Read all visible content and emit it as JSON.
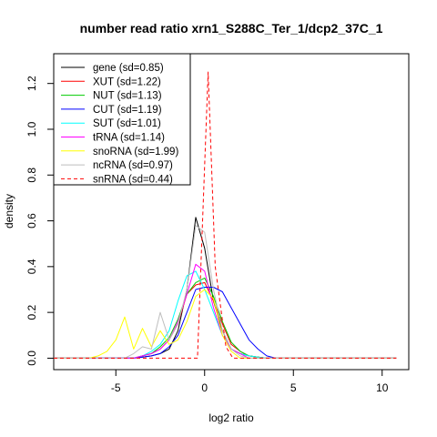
{
  "chart_data": {
    "type": "line",
    "title": "number read ratio xrn1_S288C_Ter_1/dcp2_37C_1",
    "xlabel": "log2 ratio",
    "ylabel": "density",
    "xlim": [
      -8.5,
      11.5
    ],
    "ylim": [
      -0.05,
      1.33
    ],
    "xticks": [
      -5,
      0,
      5,
      10
    ],
    "yticks": [
      0.0,
      0.2,
      0.4,
      0.6,
      0.8,
      1.0,
      1.2
    ],
    "ytick_labels": [
      "0.0",
      "0.2",
      "0.4",
      "0.6",
      "0.8",
      "1.0",
      "1.2"
    ],
    "grid": false,
    "legend_position": "top-left",
    "series": [
      {
        "name": "gene (sd=0.85)",
        "color": "#000000",
        "dash": "solid",
        "x": [
          -8.5,
          -4.0,
          -3.5,
          -3.0,
          -2.5,
          -2.0,
          -1.5,
          -1.0,
          -0.5,
          0.0,
          0.5,
          1.0,
          1.5,
          2.0,
          2.5,
          3.0,
          3.5,
          4.0,
          10.8
        ],
        "y": [
          0,
          0,
          0.005,
          0.01,
          0.02,
          0.04,
          0.12,
          0.3,
          0.615,
          0.48,
          0.25,
          0.12,
          0.04,
          0.02,
          0.01,
          0.005,
          0,
          0,
          0
        ]
      },
      {
        "name": "XUT (sd=1.22)",
        "color": "#ff0000",
        "dash": "solid",
        "x": [
          -8.5,
          -4.0,
          -3.5,
          -3.0,
          -2.5,
          -2.0,
          -1.5,
          -1.0,
          -0.5,
          0.0,
          0.5,
          1.0,
          1.5,
          2.0,
          2.5,
          3.0,
          3.5,
          4.0,
          10.8
        ],
        "y": [
          0,
          0,
          0.01,
          0.02,
          0.04,
          0.08,
          0.15,
          0.28,
          0.32,
          0.33,
          0.25,
          0.15,
          0.06,
          0.03,
          0.01,
          0.005,
          0,
          0,
          0
        ]
      },
      {
        "name": "NUT (sd=1.13)",
        "color": "#00cc00",
        "dash": "solid",
        "x": [
          -8.5,
          -4.0,
          -3.5,
          -3.0,
          -2.5,
          -2.0,
          -1.5,
          -1.0,
          -0.5,
          0.0,
          0.5,
          1.0,
          1.5,
          2.0,
          2.5,
          3.0,
          3.5,
          4.0,
          10.8
        ],
        "y": [
          0,
          0,
          0.01,
          0.02,
          0.05,
          0.09,
          0.17,
          0.28,
          0.33,
          0.35,
          0.27,
          0.16,
          0.07,
          0.03,
          0.01,
          0.005,
          0,
          0,
          0
        ]
      },
      {
        "name": "CUT (sd=1.19)",
        "color": "#0000ff",
        "dash": "solid",
        "x": [
          -8.5,
          -4.0,
          -3.5,
          -3.0,
          -2.5,
          -2.0,
          -1.5,
          -1.0,
          -0.5,
          0.0,
          0.5,
          1.0,
          1.5,
          2.0,
          2.5,
          3.0,
          3.5,
          4.0,
          10.8
        ],
        "y": [
          0,
          0,
          0.005,
          0.01,
          0.02,
          0.05,
          0.1,
          0.2,
          0.3,
          0.31,
          0.31,
          0.29,
          0.22,
          0.15,
          0.08,
          0.04,
          0.01,
          0,
          0
        ]
      },
      {
        "name": "SUT (sd=1.01)",
        "color": "#00ffff",
        "dash": "solid",
        "x": [
          -8.5,
          -4.0,
          -3.5,
          -3.0,
          -2.5,
          -2.0,
          -1.5,
          -1.0,
          -0.5,
          0.0,
          0.5,
          1.0,
          1.5,
          2.0,
          2.5,
          3.0,
          3.5,
          4.0,
          10.8
        ],
        "y": [
          0,
          0,
          0.01,
          0.03,
          0.06,
          0.12,
          0.25,
          0.36,
          0.38,
          0.3,
          0.2,
          0.1,
          0.04,
          0.02,
          0.01,
          0.005,
          0,
          0,
          0
        ]
      },
      {
        "name": "tRNA (sd=1.14)",
        "color": "#ff00ff",
        "dash": "solid",
        "x": [
          -8.5,
          -4.0,
          -3.5,
          -3.0,
          -2.5,
          -2.0,
          -1.5,
          -1.0,
          -0.5,
          0.0,
          0.5,
          1.0,
          1.5,
          2.0,
          2.5,
          3.0,
          3.5,
          4.0,
          10.8
        ],
        "y": [
          0,
          0,
          0.01,
          0.02,
          0.04,
          0.08,
          0.16,
          0.28,
          0.41,
          0.38,
          0.22,
          0.1,
          0.04,
          0.02,
          0,
          0,
          0,
          0,
          0
        ]
      },
      {
        "name": "snoRNA (sd=1.99)",
        "color": "#ffff00",
        "dash": "solid",
        "x": [
          -8.5,
          -6.5,
          -6.0,
          -5.5,
          -5.0,
          -4.5,
          -4.0,
          -3.5,
          -3.0,
          -2.5,
          -2.0,
          -1.5,
          -1.0,
          -0.5,
          0.0,
          0.5,
          1.0,
          1.5,
          2.0,
          10.8
        ],
        "y": [
          0,
          0,
          0.01,
          0.03,
          0.08,
          0.18,
          0.04,
          0.13,
          0.05,
          0.12,
          0.06,
          0.08,
          0.16,
          0.27,
          0.3,
          0.26,
          0.1,
          0.03,
          0,
          0
        ]
      },
      {
        "name": "ncRNA (sd=0.97)",
        "color": "#bebebe",
        "dash": "solid",
        "x": [
          -8.5,
          -4.5,
          -4.0,
          -3.5,
          -3.0,
          -2.5,
          -2.0,
          -1.5,
          -1.0,
          -0.5,
          0.0,
          0.5,
          1.0,
          1.5,
          2.0,
          2.5,
          3.0,
          10.8
        ],
        "y": [
          0,
          0,
          0.02,
          0.05,
          0.04,
          0.2,
          0.08,
          0.15,
          0.3,
          0.58,
          0.55,
          0.3,
          0.12,
          0.04,
          0.01,
          0,
          0,
          0
        ]
      },
      {
        "name": "snRNA (sd=0.44)",
        "color": "#ff0000",
        "dash": "dashed",
        "x": [
          -8.5,
          -0.4,
          0.2,
          0.6,
          1.2,
          1.6,
          10.8
        ],
        "y": [
          0,
          0,
          1.25,
          0.4,
          0.05,
          0,
          0
        ]
      }
    ]
  }
}
